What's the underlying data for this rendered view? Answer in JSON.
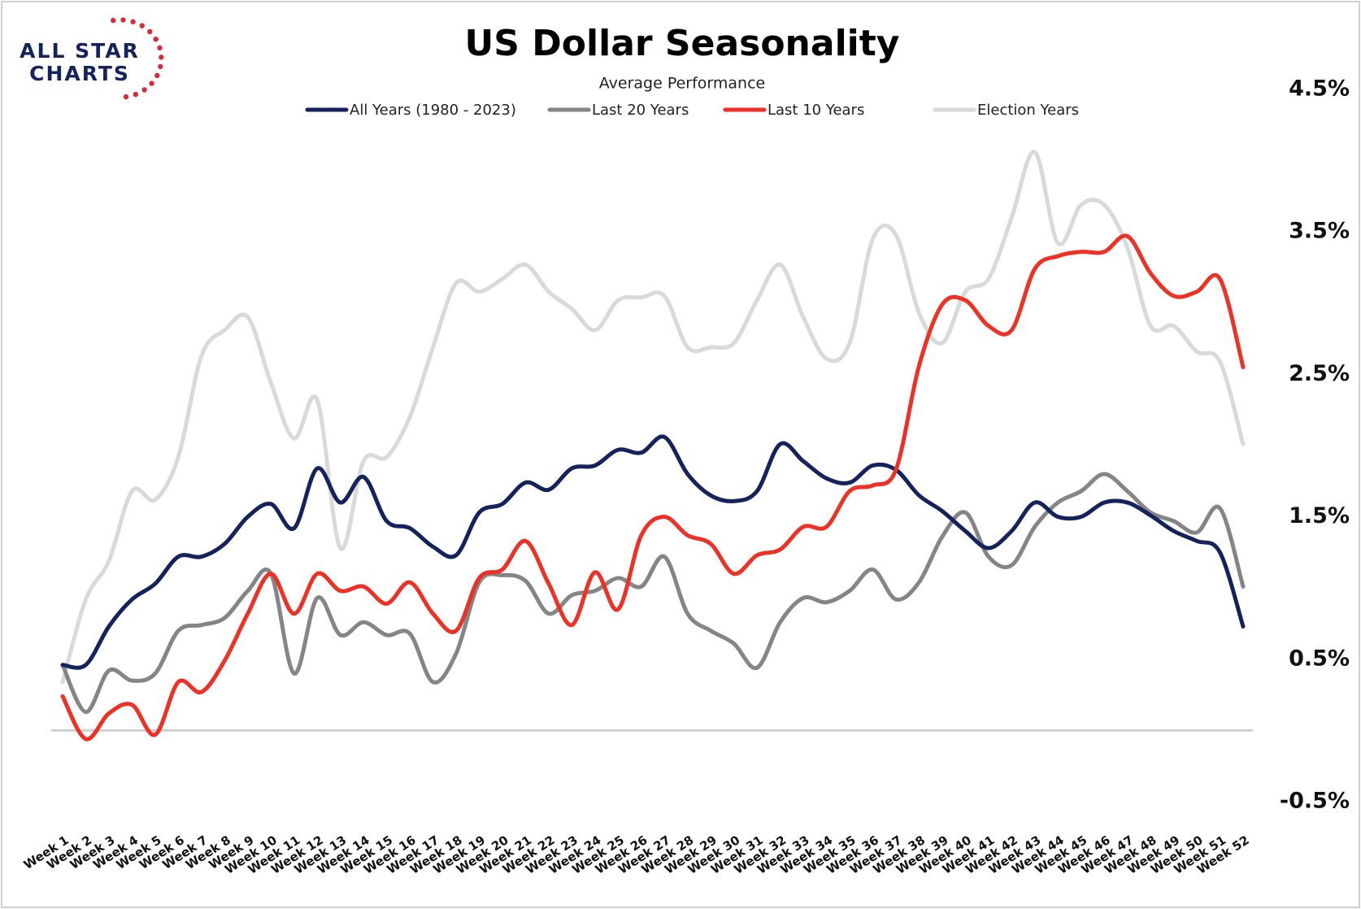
{
  "logo": {
    "line1": "ALL STAR",
    "line2": "CHARTS"
  },
  "chart_data": {
    "type": "line",
    "title": "US Dollar Seasonality",
    "subtitle": "Average Performance",
    "categories": [
      "Week 1",
      "Week 2",
      "Week 3",
      "Week 4",
      "Week 5",
      "Week 6",
      "Week 7",
      "Week 8",
      "Week 9",
      "Week 10",
      "Week 11",
      "Week 12",
      "Week 13",
      "Week 14",
      "Week 15",
      "Week 16",
      "Week 17",
      "Week 18",
      "Week 19",
      "Week 20",
      "Week 21",
      "Week 22",
      "Week 23",
      "Week 24",
      "Week 25",
      "Week 26",
      "Week 27",
      "Week 28",
      "Week 29",
      "Week 30",
      "Week 31",
      "Week 32",
      "Week 33",
      "Week 34",
      "Week 35",
      "Week 36",
      "Week 37",
      "Week 38",
      "Week 39",
      "Week 40",
      "Week 41",
      "Week 42",
      "Week 43",
      "Week 44",
      "Week 45",
      "Week 46",
      "Week 47",
      "Week 48",
      "Week 49",
      "Week 50",
      "Week 51",
      "Week 52"
    ],
    "series": [
      {
        "name": "All Years (1980 - 2023)",
        "color": "#14235e",
        "values": [
          0.46,
          0.46,
          0.73,
          0.92,
          1.03,
          1.22,
          1.22,
          1.31,
          1.5,
          1.59,
          1.42,
          1.84,
          1.6,
          1.78,
          1.47,
          1.42,
          1.29,
          1.23,
          1.53,
          1.59,
          1.74,
          1.69,
          1.84,
          1.86,
          1.97,
          1.95,
          2.06,
          1.8,
          1.65,
          1.61,
          1.68,
          2.01,
          1.89,
          1.77,
          1.74,
          1.86,
          1.83,
          1.65,
          1.54,
          1.4,
          1.28,
          1.4,
          1.6,
          1.5,
          1.5,
          1.6,
          1.6,
          1.51,
          1.4,
          1.33,
          1.25,
          0.73
        ]
      },
      {
        "name": "Last 20 Years",
        "color": "#858585",
        "values": [
          0.46,
          0.13,
          0.42,
          0.35,
          0.4,
          0.7,
          0.74,
          0.79,
          0.98,
          1.1,
          0.4,
          0.93,
          0.67,
          0.76,
          0.67,
          0.68,
          0.34,
          0.54,
          1.04,
          1.09,
          1.05,
          0.82,
          0.95,
          0.98,
          1.07,
          1.01,
          1.22,
          0.82,
          0.7,
          0.61,
          0.44,
          0.76,
          0.93,
          0.9,
          0.98,
          1.13,
          0.92,
          1.04,
          1.36,
          1.53,
          1.22,
          1.16,
          1.43,
          1.6,
          1.68,
          1.8,
          1.68,
          1.53,
          1.47,
          1.39,
          1.56,
          1.01
        ]
      },
      {
        "name": "Last 10 Years",
        "color": "#ee3124",
        "values": [
          0.24,
          -0.06,
          0.12,
          0.18,
          -0.03,
          0.34,
          0.27,
          0.49,
          0.82,
          1.1,
          0.82,
          1.1,
          0.98,
          1.01,
          0.89,
          1.04,
          0.82,
          0.7,
          1.07,
          1.13,
          1.33,
          1.03,
          0.74,
          1.11,
          0.85,
          1.37,
          1.5,
          1.37,
          1.31,
          1.1,
          1.23,
          1.27,
          1.43,
          1.43,
          1.68,
          1.72,
          1.83,
          2.56,
          2.99,
          3.02,
          2.84,
          2.81,
          3.24,
          3.33,
          3.36,
          3.36,
          3.47,
          3.21,
          3.05,
          3.08,
          3.17,
          2.55
        ]
      },
      {
        "name": "Election Years",
        "color": "#d9d9d9",
        "values": [
          0.34,
          0.92,
          1.19,
          1.68,
          1.62,
          1.92,
          2.63,
          2.81,
          2.9,
          2.44,
          2.05,
          2.32,
          1.28,
          1.89,
          1.92,
          2.2,
          2.69,
          3.14,
          3.08,
          3.17,
          3.27,
          3.08,
          2.96,
          2.81,
          3.02,
          3.04,
          3.05,
          2.69,
          2.69,
          2.72,
          3.02,
          3.27,
          2.9,
          2.61,
          2.72,
          3.45,
          3.48,
          2.93,
          2.72,
          3.08,
          3.17,
          3.6,
          4.06,
          3.42,
          3.69,
          3.69,
          3.39,
          2.84,
          2.84,
          2.66,
          2.59,
          2.01
        ]
      }
    ],
    "ylim": [
      -0.5,
      4.5
    ],
    "yticks": [
      {
        "value": -0.5,
        "label": "-0.5%"
      },
      {
        "value": 0.5,
        "label": "0.5%"
      },
      {
        "value": 1.5,
        "label": "1.5%"
      },
      {
        "value": 2.5,
        "label": "2.5%"
      },
      {
        "value": 3.5,
        "label": "3.5%"
      },
      {
        "value": 4.5,
        "label": "4.5%"
      }
    ],
    "legend": "top",
    "grid": false
  }
}
